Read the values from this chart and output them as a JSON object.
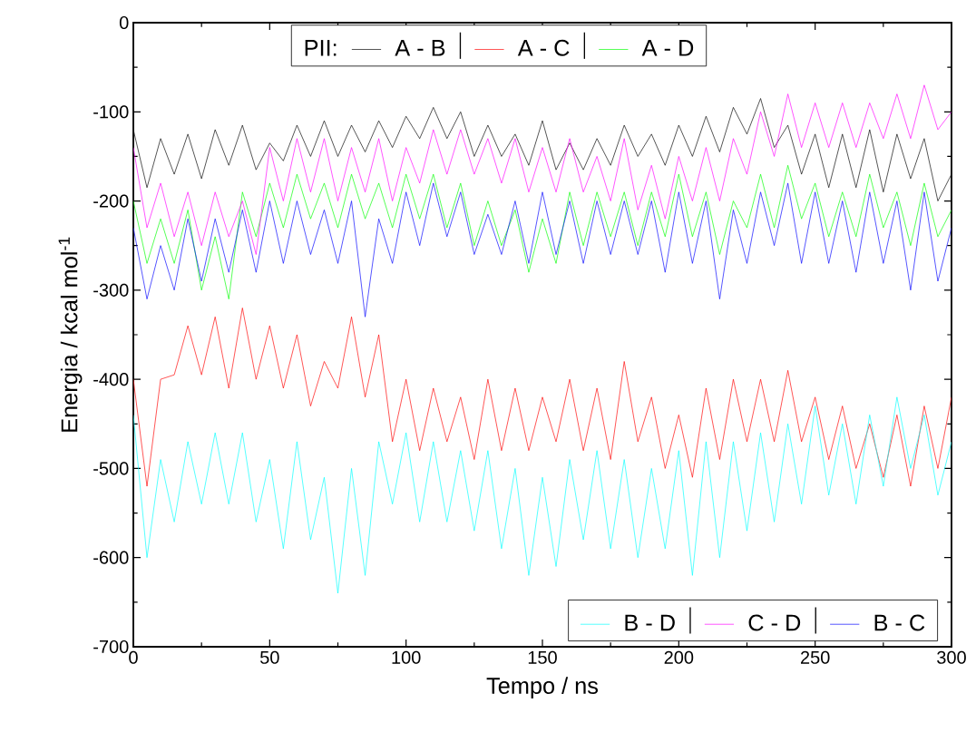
{
  "chart_data": {
    "type": "line",
    "xlabel": "Tempo / ns",
    "ylabel": "Energia / kcal mol$^{-1}$",
    "legend_title": "PII:",
    "xlim": [
      0,
      300
    ],
    "ylim": [
      -700,
      0
    ],
    "xticks": [
      0,
      50,
      100,
      150,
      200,
      250,
      300
    ],
    "yticks": [
      -700,
      -600,
      -500,
      -400,
      -300,
      -200,
      -100,
      0
    ],
    "legend": "bottom right",
    "marker": "none",
    "line_style": "solid",
    "grid": false,
    "x": [
      0,
      5,
      10,
      15,
      20,
      25,
      30,
      35,
      40,
      45,
      50,
      55,
      60,
      65,
      70,
      75,
      80,
      85,
      90,
      95,
      100,
      105,
      110,
      115,
      120,
      125,
      130,
      135,
      140,
      145,
      150,
      155,
      160,
      165,
      170,
      175,
      180,
      185,
      190,
      195,
      200,
      205,
      210,
      215,
      220,
      225,
      230,
      235,
      240,
      245,
      250,
      255,
      260,
      265,
      270,
      275,
      280,
      285,
      290,
      295,
      300
    ],
    "series": [
      {
        "name": "A - B",
        "color": "#000000",
        "values": [
          -120,
          -185,
          -130,
          -170,
          -125,
          -175,
          -120,
          -160,
          -115,
          -165,
          -135,
          -155,
          -115,
          -150,
          -110,
          -150,
          -115,
          -145,
          -110,
          -140,
          -105,
          -130,
          -95,
          -130,
          -100,
          -150,
          -115,
          -150,
          -125,
          -160,
          -110,
          -165,
          -135,
          -165,
          -130,
          -160,
          -115,
          -150,
          -125,
          -160,
          -115,
          -150,
          -105,
          -145,
          -95,
          -125,
          -85,
          -140,
          -115,
          -170,
          -125,
          -185,
          -125,
          -185,
          -120,
          -190,
          -125,
          -175,
          -130,
          -200,
          -170
        ]
      },
      {
        "name": "A - C",
        "color": "#ff0000",
        "values": [
          -400,
          -520,
          -400,
          -395,
          -340,
          -395,
          -330,
          -410,
          -320,
          -400,
          -340,
          -410,
          -350,
          -430,
          -380,
          -410,
          -330,
          -420,
          -350,
          -470,
          -400,
          -480,
          -410,
          -470,
          -420,
          -490,
          -400,
          -480,
          -410,
          -480,
          -420,
          -470,
          -400,
          -480,
          -410,
          -490,
          -380,
          -470,
          -420,
          -500,
          -440,
          -510,
          -410,
          -490,
          -400,
          -470,
          -400,
          -470,
          -390,
          -470,
          -420,
          -490,
          -430,
          -500,
          -450,
          -510,
          -440,
          -520,
          -430,
          -500,
          -420
        ]
      },
      {
        "name": "A - D",
        "color": "#00ff00",
        "values": [
          -200,
          -270,
          -220,
          -270,
          -210,
          -300,
          -240,
          -310,
          -190,
          -240,
          -180,
          -230,
          -170,
          -220,
          -180,
          -230,
          -170,
          -220,
          -180,
          -230,
          -170,
          -220,
          -170,
          -230,
          -180,
          -250,
          -200,
          -250,
          -210,
          -280,
          -220,
          -270,
          -190,
          -250,
          -190,
          -240,
          -190,
          -250,
          -190,
          -240,
          -170,
          -240,
          -190,
          -260,
          -200,
          -230,
          -170,
          -230,
          -160,
          -220,
          -180,
          -240,
          -190,
          -240,
          -170,
          -230,
          -190,
          -250,
          -180,
          -240,
          -210
        ]
      },
      {
        "name": "B - D",
        "color": "#00ffff",
        "values": [
          -440,
          -600,
          -490,
          -560,
          -470,
          -540,
          -460,
          -540,
          -460,
          -560,
          -490,
          -590,
          -470,
          -580,
          -510,
          -640,
          -500,
          -620,
          -470,
          -540,
          -460,
          -560,
          -470,
          -560,
          -480,
          -570,
          -480,
          -590,
          -500,
          -620,
          -510,
          -610,
          -490,
          -580,
          -480,
          -590,
          -490,
          -600,
          -500,
          -590,
          -480,
          -620,
          -470,
          -600,
          -470,
          -570,
          -460,
          -560,
          -450,
          -540,
          -430,
          -530,
          -450,
          -540,
          -440,
          -520,
          -420,
          -500,
          -440,
          -530,
          -470
        ]
      },
      {
        "name": "C - D",
        "color": "#ff00ff",
        "values": [
          -140,
          -230,
          -180,
          -240,
          -190,
          -250,
          -190,
          -240,
          -200,
          -260,
          -140,
          -200,
          -130,
          -190,
          -130,
          -200,
          -140,
          -190,
          -130,
          -200,
          -140,
          -180,
          -120,
          -170,
          -120,
          -170,
          -130,
          -180,
          -130,
          -190,
          -140,
          -190,
          -130,
          -190,
          -150,
          -200,
          -130,
          -210,
          -160,
          -220,
          -150,
          -200,
          -140,
          -200,
          -130,
          -170,
          -100,
          -150,
          -80,
          -140,
          -90,
          -140,
          -90,
          -140,
          -90,
          -130,
          -80,
          -130,
          -70,
          -120,
          -100
        ]
      },
      {
        "name": "B - C",
        "color": "#0000ff",
        "values": [
          -230,
          -310,
          -250,
          -300,
          -220,
          -290,
          -220,
          -280,
          -210,
          -280,
          -200,
          -270,
          -200,
          -260,
          -210,
          -270,
          -200,
          -330,
          -220,
          -270,
          -190,
          -250,
          -180,
          -240,
          -190,
          -260,
          -215,
          -260,
          -200,
          -270,
          -190,
          -260,
          -200,
          -270,
          -200,
          -260,
          -200,
          -260,
          -200,
          -280,
          -190,
          -270,
          -200,
          -310,
          -210,
          -270,
          -190,
          -250,
          -180,
          -270,
          -190,
          -270,
          -200,
          -280,
          -190,
          -270,
          -200,
          -300,
          -190,
          -290,
          -230
        ]
      }
    ]
  }
}
